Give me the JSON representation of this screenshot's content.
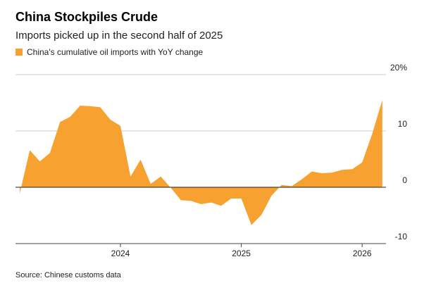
{
  "chart_data": {
    "type": "area",
    "title": "China Stockpiles Crude",
    "subtitle": "Imports picked up in the second half of 2025",
    "source": "Source: Chinese customs data",
    "categories": [
      null,
      null,
      null,
      null,
      null,
      null,
      null,
      null,
      null,
      null,
      "2024",
      null,
      null,
      null,
      null,
      null,
      null,
      null,
      null,
      null,
      null,
      null,
      "2025",
      null,
      null,
      null,
      null,
      null,
      null,
      null,
      null,
      null,
      null,
      null,
      "2026",
      null,
      null
    ],
    "series": [
      {
        "name": "China's cumulative oil imports with YoY change",
        "color": "#f7a130",
        "values": [
          -1.1,
          6.6,
          4.6,
          6.1,
          11.6,
          12.5,
          14.5,
          14.4,
          14.2,
          12.0,
          10.9,
          1.9,
          4.9,
          0.6,
          1.9,
          -0.1,
          -2.3,
          -2.4,
          -3.0,
          -2.7,
          -3.3,
          -2.0,
          -2.0,
          -6.7,
          -4.9,
          -1.5,
          0.4,
          0.2,
          1.4,
          2.8,
          2.5,
          2.6,
          3.1,
          3.2,
          4.4,
          9.5,
          15.5
        ]
      }
    ],
    "ylim": [
      -10,
      20
    ],
    "yticks": [
      -10,
      0,
      10,
      {
        "value": 20,
        "label": "20%"
      }
    ],
    "grid": true
  }
}
